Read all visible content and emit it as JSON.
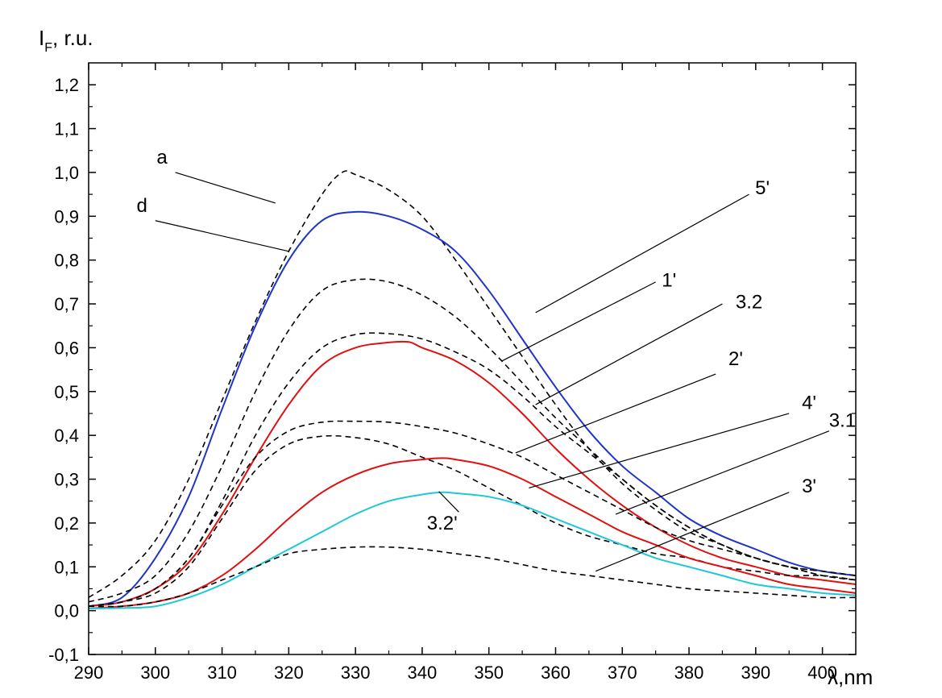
{
  "chart_data": {
    "type": "line",
    "title": "",
    "ylabel_main": "I",
    "ylabel_sub": "F",
    "ylabel_rest": ", r.u.",
    "xlabel_symbol": "λ",
    "xlabel_rest": ",nm",
    "xlim": [
      290,
      405
    ],
    "ylim": [
      -0.1,
      1.25
    ],
    "x_ticks": [
      290,
      300,
      310,
      320,
      330,
      340,
      350,
      360,
      370,
      380,
      390,
      400
    ],
    "x_tick_labels": [
      "290",
      "300",
      "310",
      "320",
      "330",
      "340",
      "350",
      "360",
      "370",
      "380",
      "390",
      "400"
    ],
    "y_ticks": [
      -0.1,
      0.0,
      0.1,
      0.2,
      0.3,
      0.4,
      0.5,
      0.6,
      0.7,
      0.8,
      0.9,
      1.0,
      1.1,
      1.2
    ],
    "y_tick_labels": [
      "-0,1",
      "0,0",
      "0,1",
      "0,2",
      "0,3",
      "0,4",
      "0,5",
      "0,6",
      "0,7",
      "0,8",
      "0,9",
      "1,0",
      "1,1",
      "1,2"
    ],
    "grid": false,
    "series": [
      {
        "name": "a",
        "color": "#000000",
        "dash": true,
        "x": [
          290,
          295,
          300,
          305,
          310,
          315,
          320,
          325,
          328,
          330,
          335,
          340,
          345,
          350,
          355,
          360,
          365,
          370,
          375,
          380,
          385,
          390,
          395,
          400,
          405
        ],
        "y": [
          0.03,
          0.08,
          0.16,
          0.3,
          0.48,
          0.66,
          0.82,
          0.95,
          1.0,
          0.995,
          0.96,
          0.9,
          0.8,
          0.69,
          0.58,
          0.47,
          0.37,
          0.29,
          0.23,
          0.18,
          0.15,
          0.12,
          0.1,
          0.09,
          0.08
        ]
      },
      {
        "name": "d",
        "color": "#1f35c8",
        "dash": false,
        "x": [
          290,
          295,
          300,
          305,
          310,
          315,
          320,
          325,
          330,
          335,
          340,
          345,
          350,
          355,
          360,
          365,
          370,
          375,
          380,
          385,
          390,
          395,
          400,
          405
        ],
        "y": [
          0.01,
          0.03,
          0.12,
          0.26,
          0.46,
          0.65,
          0.8,
          0.89,
          0.91,
          0.9,
          0.87,
          0.82,
          0.73,
          0.62,
          0.51,
          0.41,
          0.33,
          0.27,
          0.21,
          0.17,
          0.14,
          0.11,
          0.09,
          0.08
        ]
      },
      {
        "name": "5'",
        "color": "#000000",
        "dash": true,
        "x": [
          290,
          295,
          300,
          305,
          310,
          315,
          320,
          325,
          330,
          335,
          340,
          345,
          350,
          355,
          360,
          365,
          370,
          375,
          380,
          385,
          390,
          395,
          400,
          405
        ],
        "y": [
          0.02,
          0.04,
          0.08,
          0.18,
          0.33,
          0.5,
          0.64,
          0.73,
          0.755,
          0.75,
          0.72,
          0.67,
          0.6,
          0.52,
          0.44,
          0.37,
          0.3,
          0.24,
          0.19,
          0.15,
          0.12,
          0.1,
          0.08,
          0.07
        ]
      },
      {
        "name": "1'",
        "color": "#000000",
        "dash": true,
        "x": [
          290,
          295,
          300,
          305,
          310,
          315,
          320,
          325,
          330,
          335,
          340,
          345,
          350,
          355,
          360,
          365,
          370,
          375,
          380,
          385,
          390,
          395,
          400,
          405
        ],
        "y": [
          0.01,
          0.02,
          0.05,
          0.12,
          0.25,
          0.4,
          0.52,
          0.6,
          0.63,
          0.632,
          0.62,
          0.59,
          0.55,
          0.49,
          0.42,
          0.36,
          0.3,
          0.24,
          0.19,
          0.15,
          0.12,
          0.1,
          0.08,
          0.07
        ]
      },
      {
        "name": "3.2",
        "color": "#e01010",
        "dash": false,
        "x": [
          290,
          295,
          300,
          305,
          310,
          315,
          320,
          325,
          330,
          335,
          338,
          340,
          345,
          350,
          355,
          360,
          365,
          370,
          375,
          380,
          385,
          390,
          395,
          400,
          405
        ],
        "y": [
          0.01,
          0.02,
          0.05,
          0.11,
          0.22,
          0.35,
          0.47,
          0.56,
          0.6,
          0.612,
          0.613,
          0.6,
          0.57,
          0.52,
          0.45,
          0.37,
          0.3,
          0.24,
          0.19,
          0.15,
          0.12,
          0.1,
          0.08,
          0.07,
          0.06
        ]
      },
      {
        "name": "2'",
        "color": "#000000",
        "dash": true,
        "x": [
          290,
          295,
          300,
          305,
          310,
          315,
          320,
          325,
          330,
          335,
          340,
          345,
          350,
          355,
          360,
          365,
          370,
          375,
          380,
          385,
          390,
          395,
          400,
          405
        ],
        "y": [
          0.01,
          0.02,
          0.05,
          0.12,
          0.24,
          0.35,
          0.41,
          0.43,
          0.432,
          0.43,
          0.42,
          0.405,
          0.38,
          0.35,
          0.31,
          0.27,
          0.23,
          0.19,
          0.16,
          0.14,
          0.12,
          0.1,
          0.09,
          0.08
        ]
      },
      {
        "name": "4'",
        "color": "#000000",
        "dash": true,
        "x": [
          290,
          295,
          300,
          305,
          310,
          315,
          320,
          325,
          330,
          335,
          340,
          345,
          350,
          355,
          360,
          365,
          370,
          375,
          380,
          385,
          390,
          395,
          400,
          405
        ],
        "y": [
          0.01,
          0.02,
          0.04,
          0.1,
          0.21,
          0.32,
          0.38,
          0.398,
          0.395,
          0.38,
          0.35,
          0.32,
          0.28,
          0.24,
          0.2,
          0.17,
          0.15,
          0.13,
          0.12,
          0.1,
          0.09,
          0.08,
          0.08,
          0.07
        ]
      },
      {
        "name": "3.1",
        "color": "#e01010",
        "dash": false,
        "x": [
          290,
          295,
          300,
          305,
          310,
          315,
          320,
          325,
          330,
          335,
          340,
          343,
          345,
          350,
          355,
          360,
          365,
          370,
          375,
          380,
          385,
          390,
          395,
          400,
          405
        ],
        "y": [
          0.005,
          0.01,
          0.02,
          0.04,
          0.08,
          0.14,
          0.21,
          0.27,
          0.31,
          0.335,
          0.345,
          0.348,
          0.345,
          0.33,
          0.3,
          0.26,
          0.22,
          0.18,
          0.15,
          0.12,
          0.1,
          0.08,
          0.06,
          0.05,
          0.04
        ]
      },
      {
        "name": "3.2'",
        "color": "#1ec8d8",
        "dash": false,
        "x": [
          290,
          295,
          300,
          305,
          310,
          315,
          320,
          325,
          330,
          335,
          340,
          343,
          345,
          350,
          355,
          360,
          365,
          370,
          375,
          380,
          385,
          390,
          395,
          400,
          405
        ],
        "y": [
          0.005,
          0.006,
          0.01,
          0.03,
          0.06,
          0.1,
          0.14,
          0.18,
          0.22,
          0.25,
          0.265,
          0.27,
          0.268,
          0.26,
          0.24,
          0.21,
          0.18,
          0.15,
          0.12,
          0.1,
          0.08,
          0.06,
          0.05,
          0.04,
          0.035
        ]
      },
      {
        "name": "3'",
        "color": "#000000",
        "dash": true,
        "x": [
          290,
          295,
          300,
          305,
          310,
          315,
          320,
          325,
          330,
          335,
          340,
          345,
          350,
          355,
          360,
          365,
          370,
          375,
          380,
          385,
          390,
          395,
          400,
          405
        ],
        "y": [
          0.01,
          0.01,
          0.02,
          0.04,
          0.07,
          0.1,
          0.13,
          0.14,
          0.145,
          0.145,
          0.14,
          0.13,
          0.12,
          0.105,
          0.09,
          0.08,
          0.07,
          0.06,
          0.05,
          0.045,
          0.04,
          0.035,
          0.03,
          0.03
        ]
      }
    ],
    "labels": [
      {
        "text": "a",
        "pos": [
          301,
          1.02
        ],
        "line": [
          [
            303,
            1.0
          ],
          [
            318,
            0.93
          ]
        ]
      },
      {
        "text": "d",
        "pos": [
          298,
          0.91
        ],
        "line": [
          [
            300,
            0.89
          ],
          [
            320,
            0.82
          ]
        ]
      },
      {
        "text": "5'",
        "pos": [
          391,
          0.95
        ],
        "line": [
          [
            389,
            0.95
          ],
          [
            357,
            0.68
          ]
        ]
      },
      {
        "text": "1'",
        "pos": [
          377,
          0.74
        ],
        "line": [
          [
            375,
            0.75
          ],
          [
            352,
            0.57
          ]
        ]
      },
      {
        "text": "3.2",
        "pos": [
          389,
          0.69
        ],
        "line": [
          [
            385,
            0.7
          ],
          [
            357,
            0.47
          ]
        ]
      },
      {
        "text": "2'",
        "pos": [
          387,
          0.56
        ],
        "line": [
          [
            384,
            0.54
          ],
          [
            354,
            0.36
          ]
        ]
      },
      {
        "text": "4'",
        "pos": [
          398,
          0.46
        ],
        "line": [
          [
            395,
            0.45
          ],
          [
            356,
            0.28
          ]
        ]
      },
      {
        "text": "3.1",
        "pos": [
          403,
          0.42
        ],
        "line": [
          [
            401,
            0.41
          ],
          [
            369,
            0.22
          ]
        ]
      },
      {
        "text": "3'",
        "pos": [
          398,
          0.27
        ],
        "line": [
          [
            395,
            0.27
          ],
          [
            366,
            0.09
          ]
        ]
      },
      {
        "text": "3.2'",
        "pos": [
          343,
          0.185
        ],
        "line": [
          [
            345.5,
            0.225
          ],
          [
            342.5,
            0.272
          ]
        ]
      }
    ]
  }
}
